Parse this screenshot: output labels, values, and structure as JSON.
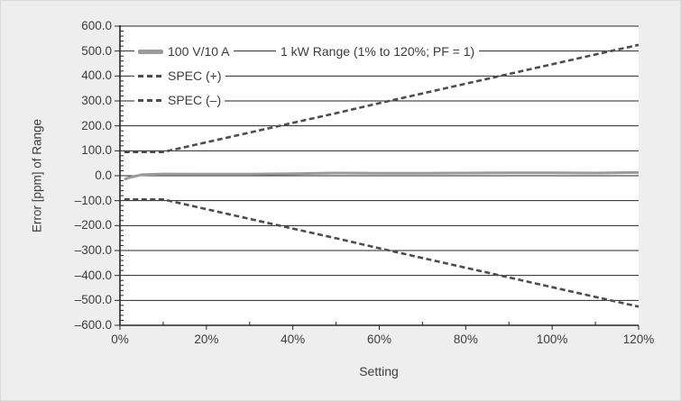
{
  "colors": {
    "background": "#eeeeee",
    "plot_background": "#ffffff",
    "gridline": "#262626",
    "axis": "#262626",
    "text": "#3c3c3c",
    "measured_line": "#9a9a9a",
    "spec_line": "#4d4d4d"
  },
  "chart_data": {
    "type": "line",
    "title": "1 kW Range (1% to 120%; PF = 1)",
    "xlabel": "Setting",
    "ylabel": "Error [ppm] of Range",
    "xlim": [
      0,
      120
    ],
    "ylim": [
      -600,
      600
    ],
    "grid": "horizontal-gridlines-every-100",
    "legend_position": "top-left-inside",
    "x": [
      1,
      2,
      5,
      10,
      20,
      30,
      40,
      50,
      60,
      70,
      80,
      90,
      100,
      110,
      120
    ],
    "series": [
      {
        "name": "100 V/10 A",
        "style": "solid",
        "color": "#9a9a9a",
        "width": 3,
        "values": [
          -15,
          -8,
          4,
          7,
          6,
          6,
          8,
          11,
          10,
          10,
          11,
          12,
          12,
          11,
          13
        ]
      },
      {
        "name": "SPEC (+)",
        "style": "dashed",
        "color": "#4d4d4d",
        "width": 2.6,
        "values": [
          95,
          95,
          95,
          95,
          134,
          173,
          212,
          251,
          291,
          330,
          369,
          408,
          447,
          486,
          525
        ]
      },
      {
        "name": "SPEC (–)",
        "style": "dashed",
        "color": "#4d4d4d",
        "width": 2.6,
        "values": [
          -95,
          -95,
          -95,
          -95,
          -134,
          -173,
          -212,
          -251,
          -291,
          -330,
          -369,
          -408,
          -447,
          -486,
          -525
        ]
      }
    ],
    "x_ticks": [
      0,
      20,
      40,
      60,
      80,
      100,
      120
    ],
    "x_tick_labels": [
      "0%",
      "20%",
      "40%",
      "60%",
      "80%",
      "100%",
      "120%"
    ],
    "x_minor_step": 10,
    "y_ticks": [
      600,
      500,
      400,
      300,
      200,
      100,
      0,
      -100,
      -200,
      -300,
      -400,
      -500,
      -600
    ],
    "y_tick_labels": [
      "600.0",
      "500.0",
      "400.0",
      "300.0",
      "200.0",
      "100.0",
      "0.0",
      "–100.0",
      "–200.0",
      "–300.0",
      "–400.0",
      "–500.0",
      "–600.0"
    ],
    "y_minor_step": 20
  }
}
